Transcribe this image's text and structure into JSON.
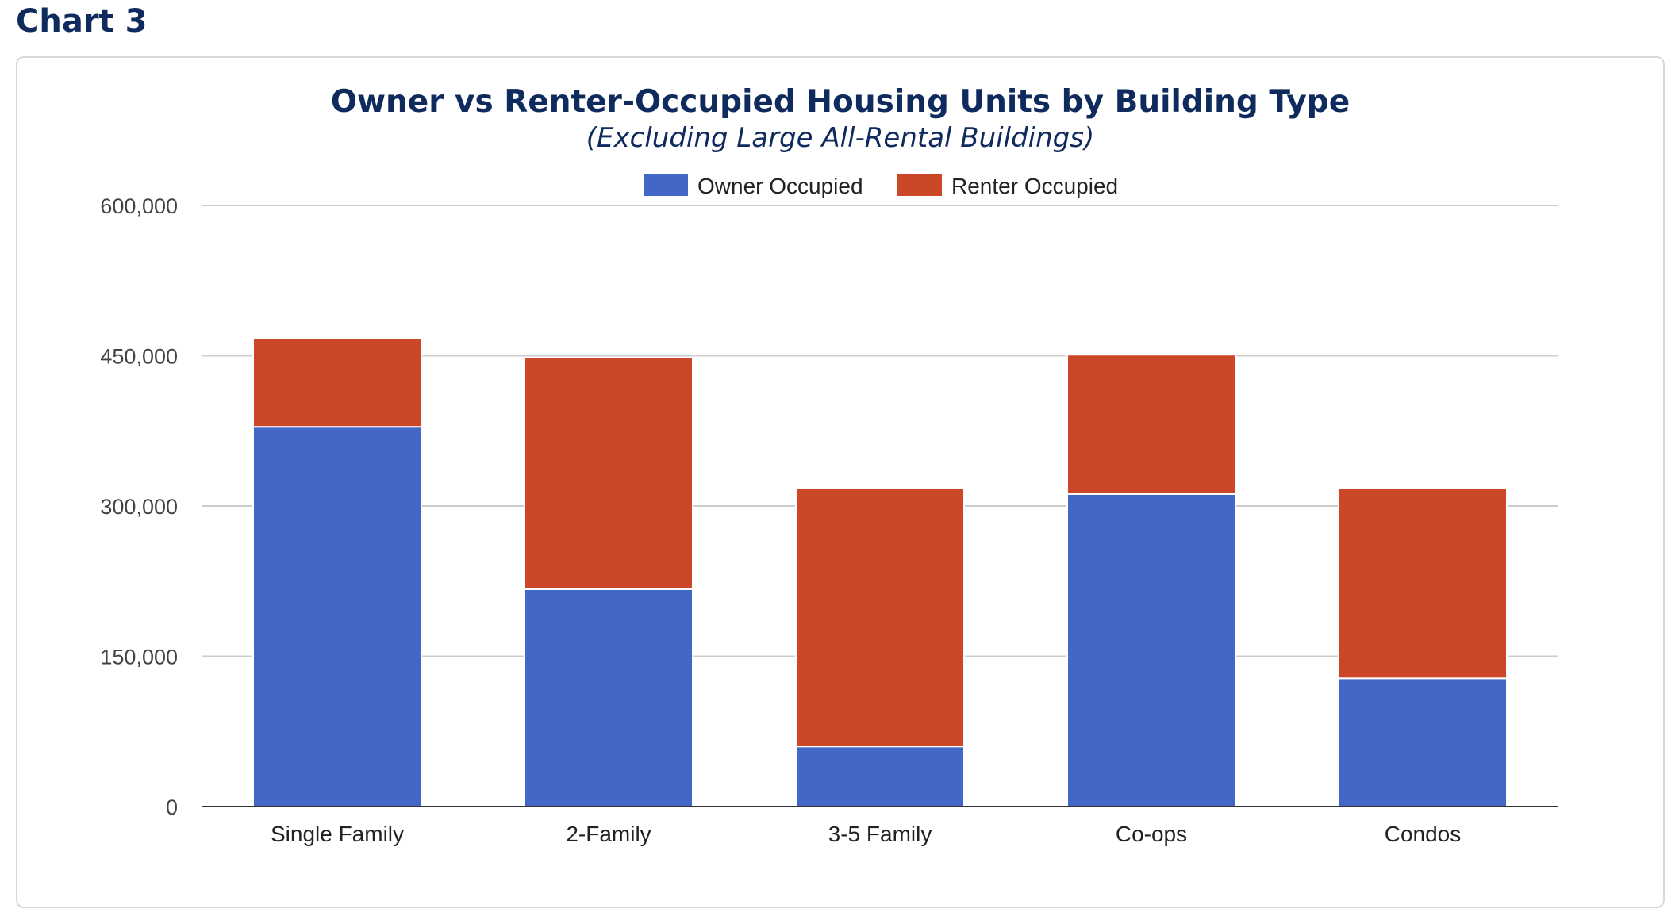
{
  "page": {
    "label": "Chart 3"
  },
  "chart_data": {
    "type": "bar",
    "stacked": true,
    "title": "Owner vs Renter-Occupied Housing Units by Building Type",
    "subtitle": "(Excluding Large All-Rental Buildings)",
    "xlabel": "",
    "ylabel": "",
    "ylim": [
      0,
      600000
    ],
    "yticks": [
      0,
      150000,
      300000,
      450000,
      600000
    ],
    "ytick_labels": [
      "0",
      "150,000",
      "300,000",
      "450,000",
      "600,000"
    ],
    "categories": [
      "Single Family",
      "2-Family",
      "3-5 Family",
      "Co-ops",
      "Condos"
    ],
    "series": [
      {
        "name": "Owner Occupied",
        "color": "#4267c6",
        "values": [
          379000,
          217000,
          60000,
          312000,
          128000
        ]
      },
      {
        "name": "Renter Occupied",
        "color": "#cc4628",
        "values": [
          88000,
          231000,
          258000,
          139000,
          190000
        ]
      }
    ],
    "grid": true,
    "legend_position": "top-center"
  }
}
